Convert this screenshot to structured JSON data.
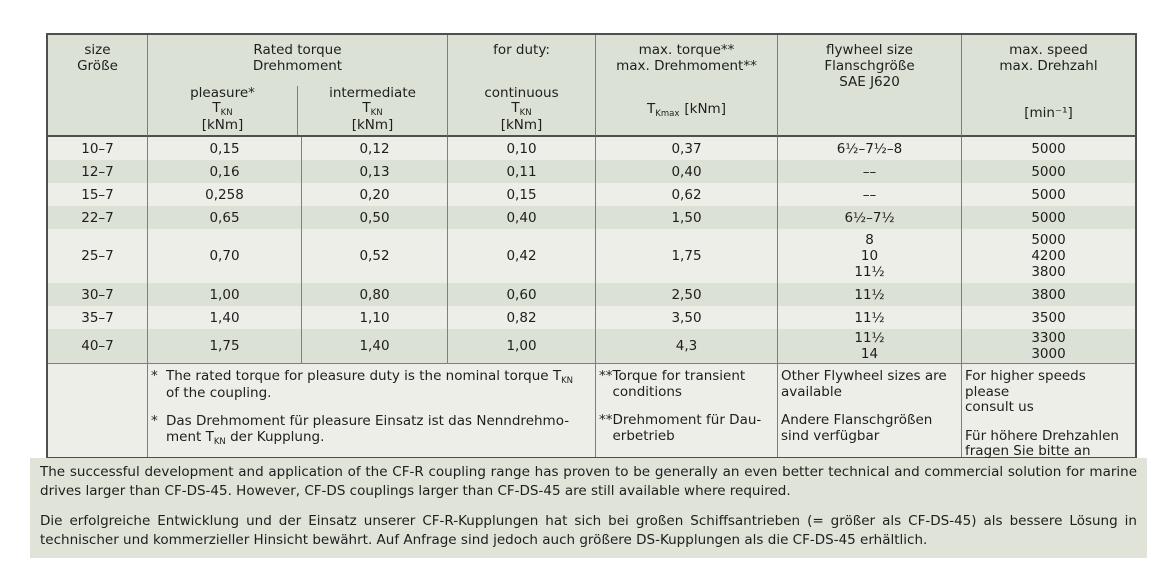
{
  "colors": {
    "page_background": "#ffffff",
    "row_light": "#edeee7",
    "row_dark": "#dce1d5",
    "header_background": "#dce1d5",
    "bottom_block_background": "#dfe3d8",
    "border_outer": "#4f4f4f",
    "border_inner": "#7f7f7f",
    "text": "#1e1e1e"
  },
  "table": {
    "header": {
      "size_l1": "size",
      "size_l2": "Größe",
      "rated_l1": "Rated torque",
      "rated_l2": "Drehmoment",
      "for_duty": "for duty:",
      "sub_pleasure": "pleasure*",
      "sub_intermediate": "intermediate",
      "sub_continuous": "continuous",
      "t_base": "T",
      "t_sub": "KN",
      "t_unit": "[kNm]",
      "maxt_l1": "max. torque**",
      "maxt_l2": "max. Drehmoment**",
      "tkmax_base": "T",
      "tkmax_sub": "Kmax",
      "tkmax_unit": "[kNm]",
      "fly_l1": "flywheel size",
      "fly_l2": "Flanschgröße",
      "fly_l3": "SAE J620",
      "speed_l1": "max. speed",
      "speed_l2": "max. Drehzahl",
      "speed_unit": "[min⁻¹]"
    },
    "rows": [
      {
        "size": "10–7",
        "pleasure": "0,15",
        "intermediate": "0,12",
        "continuous": "0,10",
        "max_torque": "0,37",
        "flywheel": "6½–7½–8",
        "speed": "5000"
      },
      {
        "size": "12–7",
        "pleasure": "0,16",
        "intermediate": "0,13",
        "continuous": "0,11",
        "max_torque": "0,40",
        "flywheel": "––",
        "speed": "5000"
      },
      {
        "size": "15–7",
        "pleasure": "0,258",
        "intermediate": "0,20",
        "continuous": "0,15",
        "max_torque": "0,62",
        "flywheel": "––",
        "speed": "5000"
      },
      {
        "size": "22–7",
        "pleasure": "0,65",
        "intermediate": "0,50",
        "continuous": "0,40",
        "max_torque": "1,50",
        "flywheel": "6½–7½",
        "speed": "5000"
      },
      {
        "size": "25–7",
        "pleasure": "0,70",
        "intermediate": "0,52",
        "continuous": "0,42",
        "max_torque": "1,75",
        "flywheel": "8\n10\n11½",
        "speed": "5000\n4200\n3800"
      },
      {
        "size": "30–7",
        "pleasure": "1,00",
        "intermediate": "0,80",
        "continuous": "0,60",
        "max_torque": "2,50",
        "flywheel": "11½",
        "speed": "3800"
      },
      {
        "size": "35–7",
        "pleasure": "1,40",
        "intermediate": "1,10",
        "continuous": "0,82",
        "max_torque": "3,50",
        "flywheel": "11½",
        "speed": "3500"
      },
      {
        "size": "40–7",
        "pleasure": "1,75",
        "intermediate": "1,40",
        "continuous": "1,00",
        "max_torque": "4,3",
        "flywheel": "11½\n14",
        "speed": "3300\n3000"
      }
    ],
    "footnotes": {
      "star_en": {
        "marker": "*",
        "pre": "The rated torque for pleasure duty is the nominal torque T",
        "sub": "KN",
        "post": "\nof the coupling."
      },
      "star_de": {
        "marker": "*",
        "pre": "Das Drehmoment für pleasure Einsatz ist das Nenndrehmo-\nment T",
        "sub": "KN",
        "post": " der Kupplung."
      },
      "dstar_en": {
        "marker": "**",
        "text": "Torque for transient\nconditions"
      },
      "dstar_de": {
        "marker": "**",
        "text": "Drehmoment für Dau-\nerbetrieb"
      },
      "flywheel_en": "Other Flywheel sizes are\navailable",
      "flywheel_de": "Andere Flanschgrößen\nsind verfügbar",
      "speed_en": "For higher speeds please\nconsult us",
      "speed_de": "Für höhere Drehzahlen\nfragen Sie bitte an"
    }
  },
  "bottom_text": {
    "en": "The successful development and application of the CF-R coupling range has proven to be generally an even better technical and commercial solution for marine drives larger than CF-DS-45. However, CF-DS couplings larger than CF-DS-45 are still available where required.",
    "de": "Die erfolgreiche Entwicklung und der Einsatz unserer CF-R-Kupplungen hat sich bei großen Schiffsantrieben (= größer als CF-DS-45) als bessere Lösung in technischer und kommerzieller Hinsicht bewährt. Auf Anfrage sind jedoch auch größere DS-Kupplungen als die CF-DS-45 erhältlich."
  }
}
